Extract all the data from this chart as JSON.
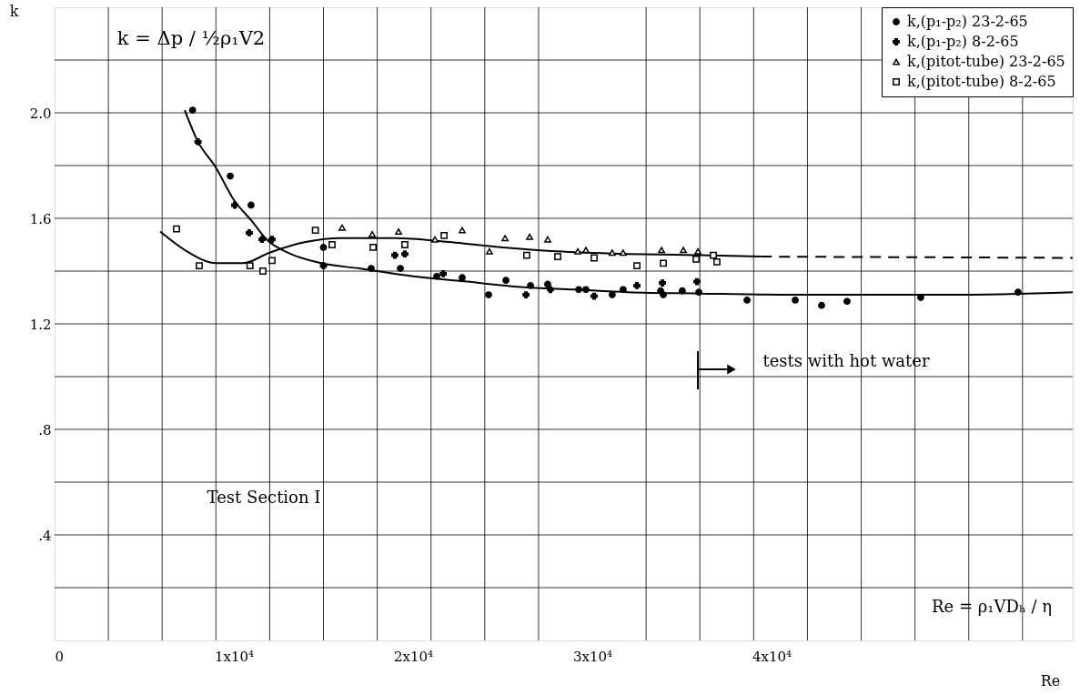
{
  "chart_data": {
    "type": "scatter",
    "xlabel": "Re",
    "ylabel": "k",
    "xlim": [
      0,
      56800
    ],
    "ylim": [
      0,
      2.4
    ],
    "xticks": [
      {
        "value": 0,
        "label": "0"
      },
      {
        "value": 10000,
        "label": "1x10⁴"
      },
      {
        "value": 20000,
        "label": "2x10⁴"
      },
      {
        "value": 30000,
        "label": "3x10⁴"
      },
      {
        "value": 40000,
        "label": "4x10⁴"
      },
      {
        "value": 3000,
        "label": null
      },
      {
        "value": 6000,
        "label": null
      },
      {
        "value": 9000,
        "label": null
      },
      {
        "value": 12000,
        "label": null
      },
      {
        "value": 15000,
        "label": null
      },
      {
        "value": 18000,
        "label": null
      },
      {
        "value": 21000,
        "label": null
      },
      {
        "value": 24000,
        "label": null
      },
      {
        "value": 27000,
        "label": null
      },
      {
        "value": 33000,
        "label": null
      },
      {
        "value": 36000,
        "label": null
      },
      {
        "value": 39000,
        "label": null
      },
      {
        "value": 42000,
        "label": null
      },
      {
        "value": 45000,
        "label": null
      },
      {
        "value": 48000,
        "label": null
      },
      {
        "value": 51000,
        "label": null
      },
      {
        "value": 54000,
        "label": null
      }
    ],
    "yticks": [
      {
        "value": 0.2,
        "label": null
      },
      {
        "value": 0.4,
        "label": ".4"
      },
      {
        "value": 0.6,
        "label": null
      },
      {
        "value": 0.8,
        "label": ".8"
      },
      {
        "value": 1.0,
        "label": null
      },
      {
        "value": 1.2,
        "label": "1.2"
      },
      {
        "value": 1.4,
        "label": null
      },
      {
        "value": 1.6,
        "label": "1.6"
      },
      {
        "value": 1.8,
        "label": null
      },
      {
        "value": 2.0,
        "label": "2.0"
      },
      {
        "value": 2.2,
        "label": null
      }
    ],
    "grid": true,
    "legend": "top right",
    "series": [
      {
        "name": "k,(p₁-p₂)  23-2-65",
        "marker": "circle",
        "color": "#000000",
        "x": [
          7700,
          9800,
          10960,
          15000,
          17660,
          19290,
          21320,
          22740,
          24210,
          25180,
          26550,
          27510,
          29240,
          29640,
          31110,
          31720,
          33810,
          33960,
          35020,
          35940,
          38630,
          41320,
          42790,
          44210,
          48320,
          53750
        ],
        "values": [
          2.01,
          1.76,
          1.65,
          1.49,
          1.41,
          1.41,
          1.38,
          1.375,
          1.31,
          1.365,
          1.345,
          1.35,
          1.33,
          1.33,
          1.31,
          1.33,
          1.325,
          1.31,
          1.325,
          1.32,
          1.29,
          1.29,
          1.27,
          1.285,
          1.3,
          1.32
        ]
      },
      {
        "name": "k,(p₁-p₂)  8-2-65",
        "marker": "cross",
        "color": "#000000",
        "x": [
          8000,
          10050,
          10860,
          11570,
          12130,
          15000,
          18980,
          19540,
          21680,
          26300,
          27660,
          30100,
          32490,
          33910,
          35840
        ],
        "values": [
          1.89,
          1.65,
          1.545,
          1.52,
          1.52,
          1.42,
          1.46,
          1.465,
          1.39,
          1.31,
          1.33,
          1.305,
          1.345,
          1.355,
          1.36
        ]
      },
      {
        "name": "k,(pitot-tube) 23-2-65",
        "marker": "triangle",
        "color": "#000000",
        "x": [
          16040,
          17720,
          19190,
          21220,
          22740,
          24260,
          25130,
          26500,
          27510,
          29190,
          29640,
          31110,
          31720,
          33860,
          35080,
          35890
        ],
        "values": [
          1.565,
          1.54,
          1.55,
          1.52,
          1.555,
          1.475,
          1.525,
          1.53,
          1.52,
          1.475,
          1.48,
          1.47,
          1.47,
          1.48,
          1.48,
          1.475
        ]
      },
      {
        "name": "k,(pitot-tube)  8-2-65",
        "marker": "square",
        "color": "#000000",
        "x": [
          6800,
          8070,
          10900,
          11620,
          12130,
          14550,
          15480,
          17770,
          19540,
          21730,
          26340,
          28070,
          30100,
          32490,
          33960,
          35790,
          36750,
          36950
        ],
        "values": [
          1.56,
          1.42,
          1.42,
          1.4,
          1.44,
          1.555,
          1.5,
          1.49,
          1.5,
          1.535,
          1.46,
          1.455,
          1.45,
          1.42,
          1.43,
          1.445,
          1.46,
          1.435
        ]
      },
      {
        "type": "line",
        "color": "#000000",
        "line_style": "solid",
        "x": [
          5890,
          7500,
          9000,
          10500,
          12000,
          14000,
          16000,
          19000,
          22000,
          25000,
          28000,
          32000,
          36000,
          39400
        ],
        "values": [
          1.55,
          1.47,
          1.43,
          1.43,
          1.47,
          1.51,
          1.525,
          1.525,
          1.51,
          1.49,
          1.475,
          1.465,
          1.46,
          1.455
        ]
      },
      {
        "type": "line",
        "color": "#000000",
        "line_style": "dashed",
        "x": [
          39400,
          56800
        ],
        "values": [
          1.455,
          1.45
        ]
      },
      {
        "type": "line",
        "color": "#000000",
        "line_style": "solid",
        "x": [
          7260,
          8000,
          8930,
          10000,
          11000,
          11830,
          13000,
          14870,
          17000,
          20000,
          23000,
          26000,
          29000,
          32000,
          36000,
          42000,
          50000,
          56800
        ],
        "values": [
          2.01,
          1.89,
          1.8,
          1.67,
          1.59,
          1.52,
          1.47,
          1.43,
          1.41,
          1.38,
          1.36,
          1.34,
          1.33,
          1.32,
          1.315,
          1.31,
          1.31,
          1.32
        ]
      }
    ],
    "annotations": [
      "k = Δp / ½ρ₁V2",
      "tests with hot water",
      "Test Section I",
      "Re = ρ₁VDₕ / η"
    ]
  }
}
